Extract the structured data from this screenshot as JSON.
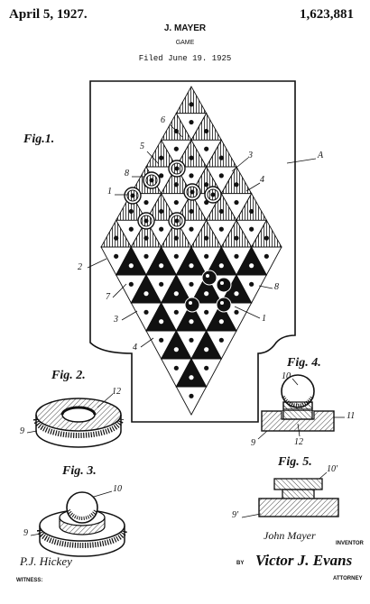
{
  "header": {
    "date": "April 5, 1927.",
    "patent_number": "1,623,881",
    "inventor": "J. MAYER",
    "title": "GAME",
    "filed": "Filed June 19. 1925"
  },
  "figures": {
    "fig1": "Fig.1.",
    "fig2": "Fig. 2.",
    "fig3": "Fig. 3.",
    "fig4": "Fig. 4.",
    "fig5": "Fig. 5."
  },
  "refs": {
    "A": "A",
    "r1a": "1",
    "r1b": "1",
    "r2": "2",
    "r3a": "3",
    "r3b": "3",
    "r4a": "4",
    "r4b": "4",
    "r5": "5",
    "r6": "6",
    "r7": "7",
    "r8a": "8",
    "r8b": "8",
    "f2_12": "12",
    "f2_9": "9",
    "f3_10": "10",
    "f3_9": "9",
    "f4_10": "10",
    "f4_11": "11",
    "f4_9": "9",
    "f4_12": "12",
    "f5_10": "10'",
    "f5_9": "9'"
  },
  "signatures": {
    "inventor_name": "John Mayer",
    "inventor_caption": "INVENTOR",
    "by": "BY",
    "attorney_name": "Victor J. Evans",
    "attorney_caption": "ATTORNEY",
    "witness_name": "P.J. Hickey",
    "witness_caption": "WITNESS:"
  }
}
